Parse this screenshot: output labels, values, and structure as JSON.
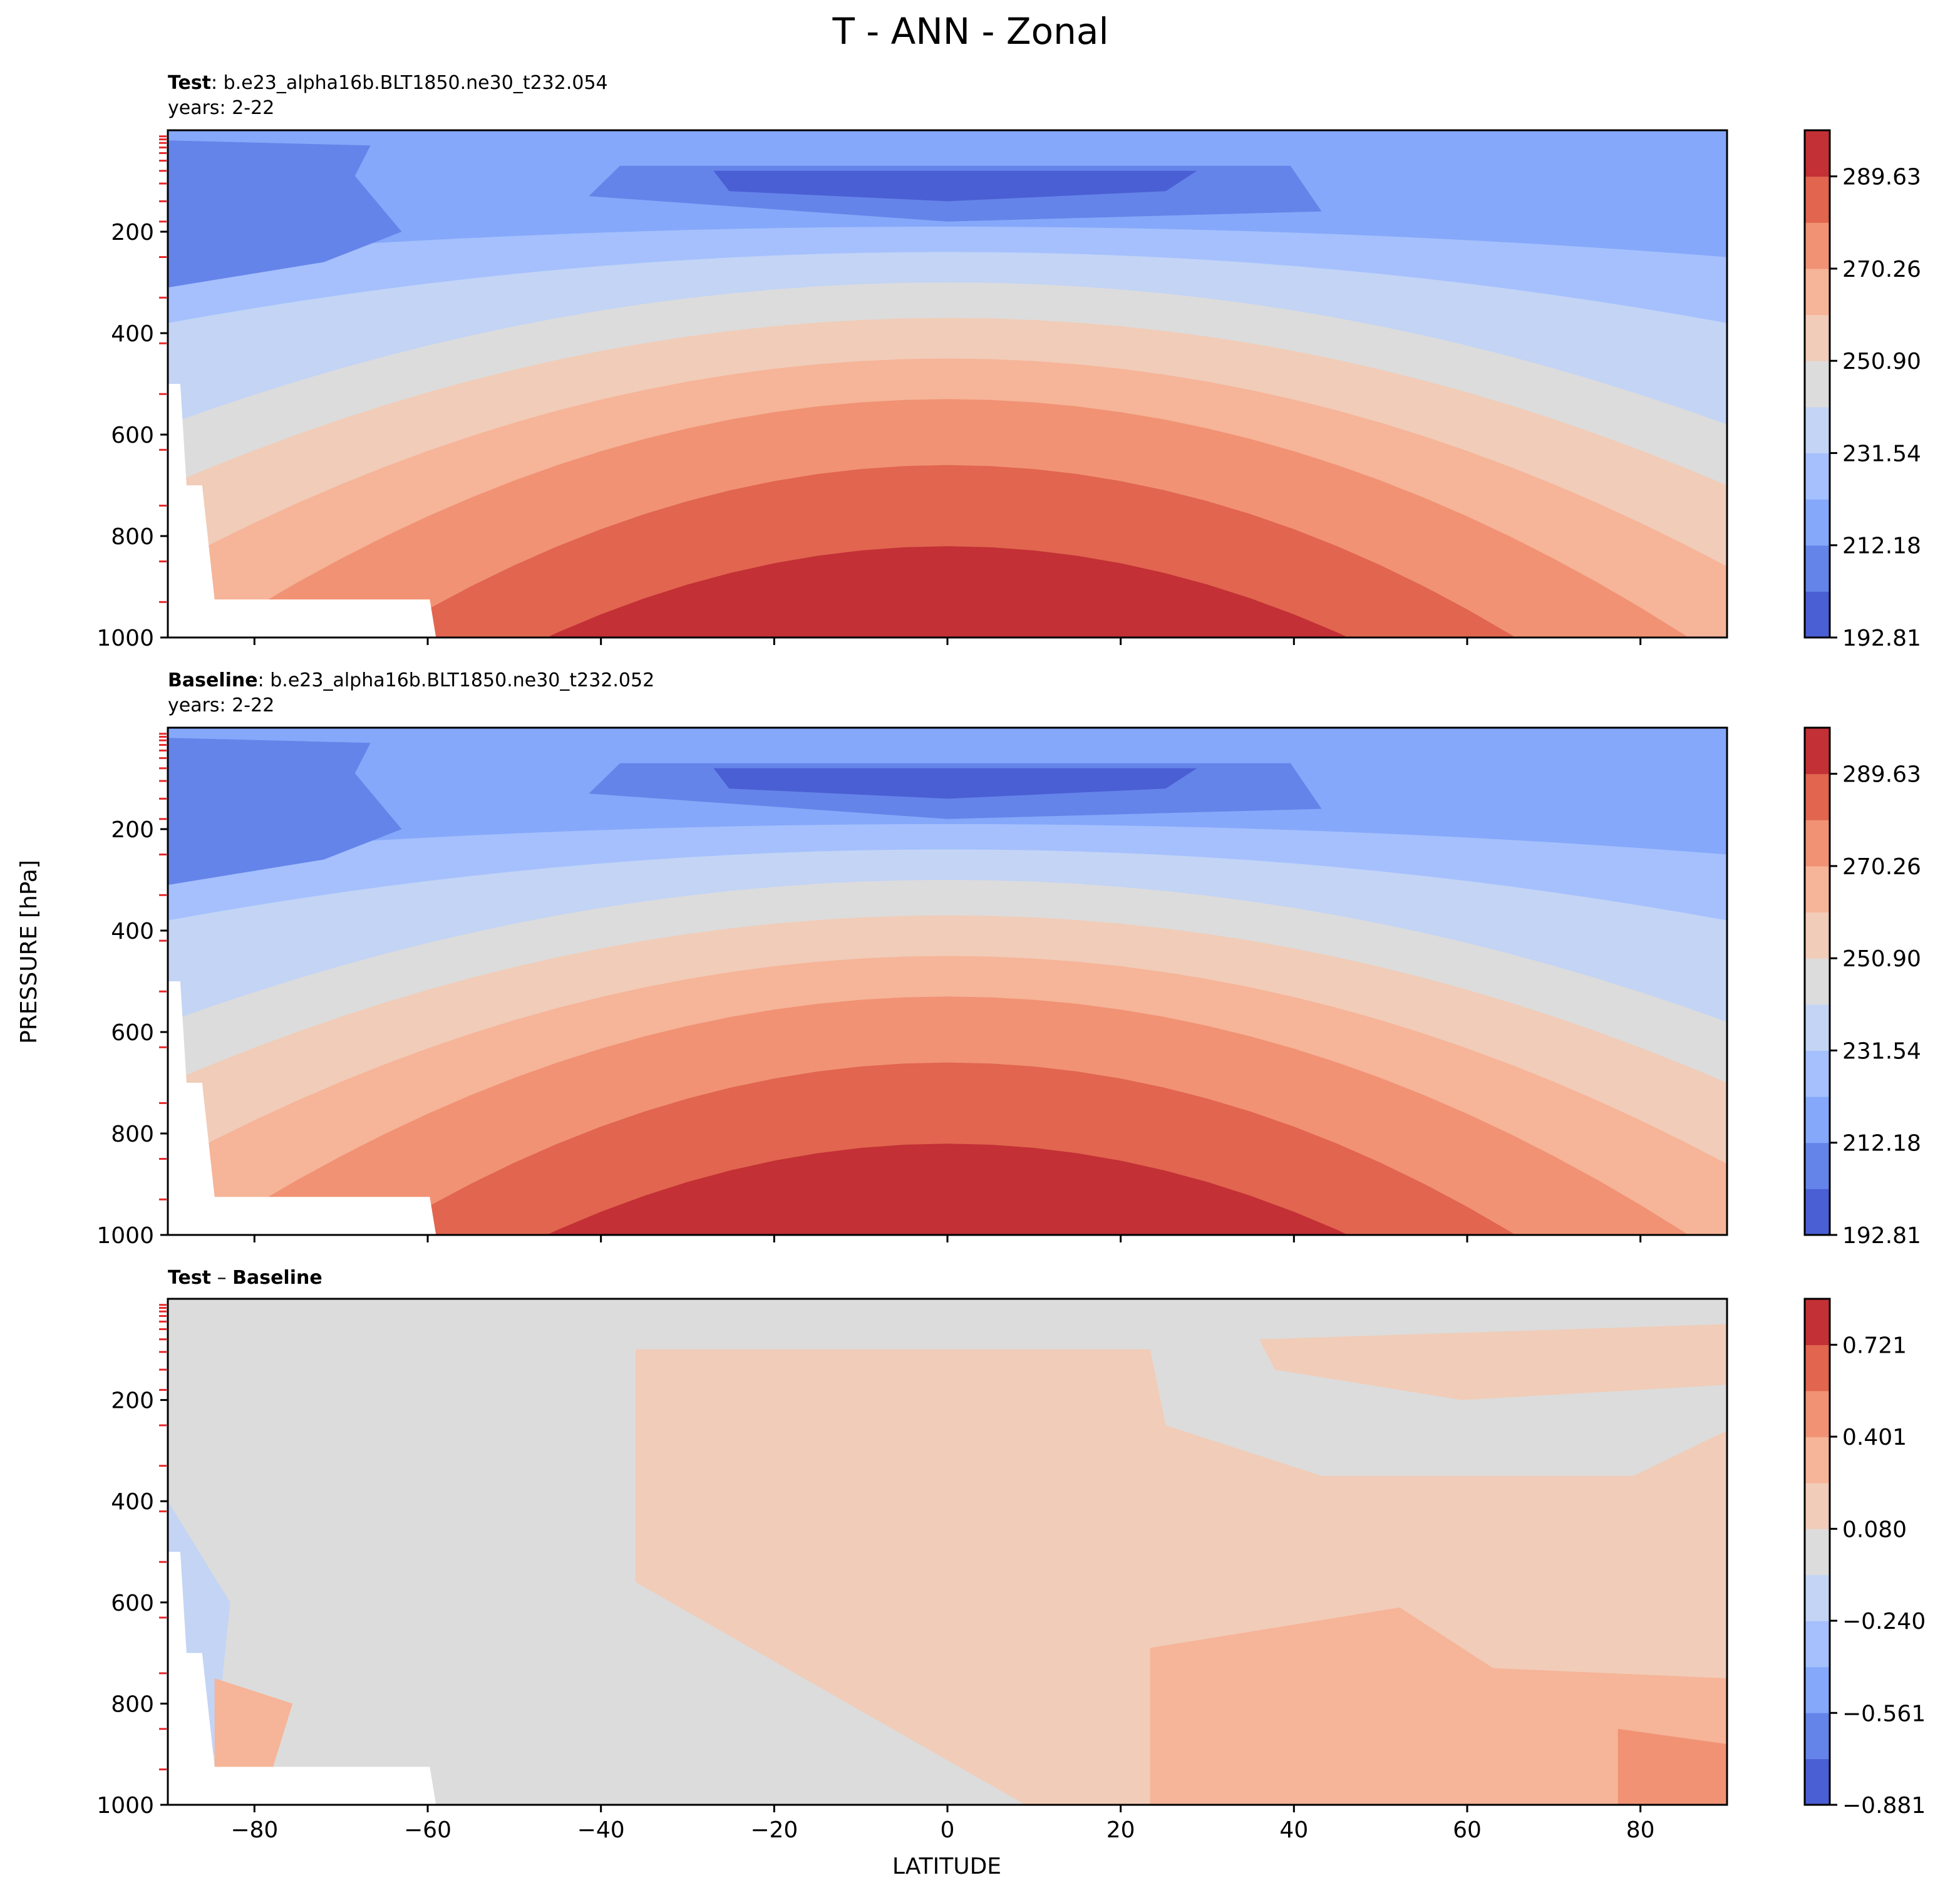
{
  "figure": {
    "title": "T - ANN - Zonal",
    "ylabel": "PRESSURE [hPa]",
    "xlabel": "LATITUDE"
  },
  "chart_data": [
    {
      "type": "heatmap",
      "label_bold": "Test",
      "label_rest": ": b.e23_alpha16b.BLT1850.ne30_t232.054",
      "years": "years: 2-22",
      "x": [
        -80,
        -60,
        -40,
        -20,
        0,
        20,
        40,
        60,
        80
      ],
      "xlim": [
        -90,
        90
      ],
      "ylim": [
        1000,
        0
      ],
      "yticks": [
        200,
        400,
        600,
        800,
        1000
      ],
      "colorbar": {
        "levels": [
          192.81,
          202.49,
          212.18,
          221.86,
          231.54,
          241.22,
          250.9,
          260.58,
          270.26,
          279.94,
          289.63,
          299.31
        ],
        "tick_labels": [
          "192.81",
          "212.18",
          "231.54",
          "250.90",
          "270.26",
          "289.63"
        ],
        "colors": [
          "#4a5fd4",
          "#6584e9",
          "#85a8fa",
          "#a5c0fd",
          "#c3d4f5",
          "#dcdcdc",
          "#f1ccb8",
          "#f6b498",
          "#f19274",
          "#e1654f",
          "#c33035"
        ]
      }
    },
    {
      "type": "heatmap",
      "label_bold": "Baseline",
      "label_rest": ": b.e23_alpha16b.BLT1850.ne30_t232.052",
      "years": "years: 2-22",
      "x": [
        -80,
        -60,
        -40,
        -20,
        0,
        20,
        40,
        60,
        80
      ],
      "xlim": [
        -90,
        90
      ],
      "ylim": [
        1000,
        0
      ],
      "yticks": [
        200,
        400,
        600,
        800,
        1000
      ],
      "colorbar": {
        "levels": [
          192.81,
          202.49,
          212.18,
          221.86,
          231.54,
          241.22,
          250.9,
          260.58,
          270.26,
          279.94,
          289.63,
          299.31
        ],
        "tick_labels": [
          "192.81",
          "212.18",
          "231.54",
          "250.90",
          "270.26",
          "289.63"
        ],
        "colors": [
          "#4a5fd4",
          "#6584e9",
          "#85a8fa",
          "#a5c0fd",
          "#c3d4f5",
          "#dcdcdc",
          "#f1ccb8",
          "#f6b498",
          "#f19274",
          "#e1654f",
          "#c33035"
        ]
      }
    },
    {
      "type": "heatmap",
      "label_bold": "Test",
      "label_rest": " – ",
      "label_bold2": "Baseline",
      "x": [
        -80,
        -60,
        -40,
        -20,
        0,
        20,
        40,
        60,
        80
      ],
      "xlim": [
        -90,
        90
      ],
      "ylim": [
        1000,
        0
      ],
      "yticks": [
        200,
        400,
        600,
        800,
        1000
      ],
      "colorbar": {
        "levels": [
          -0.881,
          -0.721,
          -0.561,
          -0.401,
          -0.24,
          -0.08,
          0.08,
          0.24,
          0.401,
          0.561,
          0.721,
          0.881
        ],
        "tick_labels": [
          "−0.881",
          "−0.561",
          "−0.240",
          "0.080",
          "0.401",
          "0.721"
        ],
        "tick_values": [
          -0.881,
          -0.561,
          -0.24,
          0.08,
          0.401,
          0.721
        ],
        "colors": [
          "#4a5fd4",
          "#6584e9",
          "#85a8fa",
          "#a5c0fd",
          "#c3d4f5",
          "#dcdcdc",
          "#f1ccb8",
          "#f6b498",
          "#f19274",
          "#e1654f",
          "#c33035"
        ]
      }
    }
  ]
}
